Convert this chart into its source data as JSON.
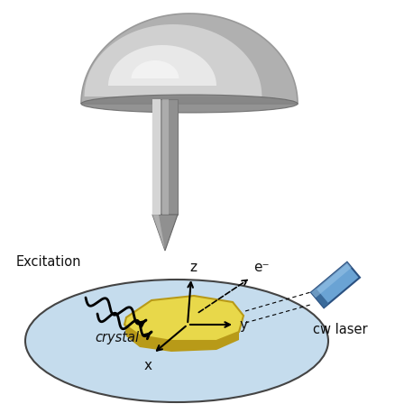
{
  "bg_color": "#ffffff",
  "ellipse_color": "#c5dced",
  "ellipse_edge": "#444444",
  "crystal_top_color": "#e8d84a",
  "crystal_side_color": "#b89a18",
  "crystal_edge": "#b89a18",
  "laser_color": "#6aa3d4",
  "laser_edge": "#2a5080",
  "laser_dark": "#3a6a9a",
  "text_color": "#111111",
  "label_excitation": "Excitation",
  "label_crystal": "crystal",
  "label_cw_laser": "cw laser",
  "label_z": "z",
  "label_y": "y",
  "label_x": "x",
  "label_eminus": "e⁻",
  "dome_base": "#b0b0b0",
  "dome_mid": "#d0d0d0",
  "dome_light": "#e8e8e8",
  "dome_highlight": "#f5f5f5",
  "dome_shadow": "#808080",
  "shaft_light": "#d5d5d5",
  "shaft_dark": "#909090",
  "tip_color": "#909090"
}
